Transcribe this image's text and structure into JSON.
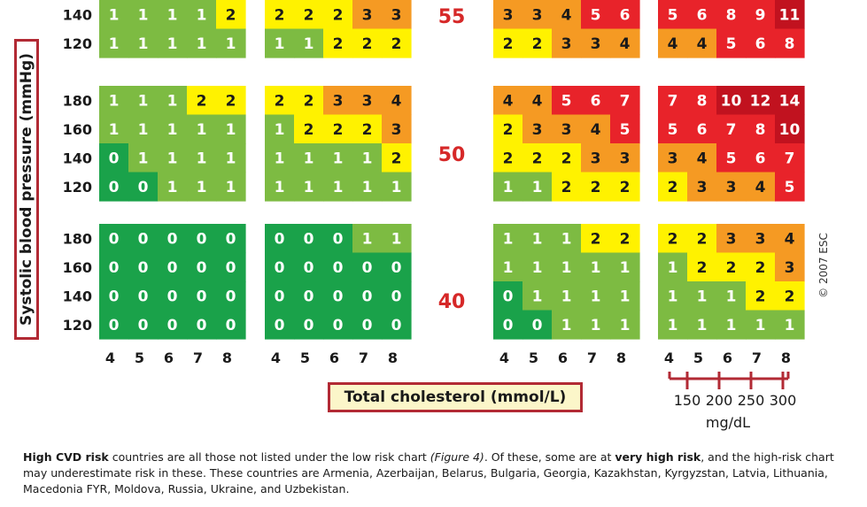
{
  "chart_data": {
    "type": "heatmap",
    "title": "",
    "xlabel": "Total cholesterol (mmol/L)",
    "ylabel": "Systolic blood pressure (mmHg)",
    "x_ticks": [
      "4",
      "5",
      "6",
      "7",
      "8"
    ],
    "secondary_x_axis": {
      "ticks": [
        "150",
        "200",
        "250",
        "300"
      ],
      "unit": "mg/dL"
    },
    "age_rows": [
      {
        "age": "55",
        "sbp": [
          "140",
          "120"
        ],
        "panels": [
          [
            [
              1,
              1,
              1,
              1,
              2
            ],
            [
              1,
              1,
              1,
              1,
              1
            ]
          ],
          [
            [
              2,
              2,
              2,
              3,
              3
            ],
            [
              1,
              1,
              2,
              2,
              2
            ]
          ],
          [
            [
              3,
              3,
              4,
              5,
              6
            ],
            [
              2,
              2,
              3,
              3,
              4
            ]
          ],
          [
            [
              5,
              6,
              8,
              9,
              11
            ],
            [
              4,
              4,
              5,
              6,
              8
            ]
          ]
        ]
      },
      {
        "age": "50",
        "sbp": [
          "180",
          "160",
          "140",
          "120"
        ],
        "panels": [
          [
            [
              1,
              1,
              1,
              2,
              2
            ],
            [
              1,
              1,
              1,
              1,
              1
            ],
            [
              0,
              1,
              1,
              1,
              1
            ],
            [
              0,
              0,
              1,
              1,
              1
            ]
          ],
          [
            [
              2,
              2,
              3,
              3,
              4
            ],
            [
              1,
              2,
              2,
              2,
              3
            ],
            [
              1,
              1,
              1,
              1,
              2
            ],
            [
              1,
              1,
              1,
              1,
              1
            ]
          ],
          [
            [
              4,
              4,
              5,
              6,
              7
            ],
            [
              2,
              3,
              3,
              4,
              5
            ],
            [
              2,
              2,
              2,
              3,
              3
            ],
            [
              1,
              1,
              2,
              2,
              2
            ]
          ],
          [
            [
              7,
              8,
              10,
              12,
              14
            ],
            [
              5,
              6,
              7,
              8,
              10
            ],
            [
              3,
              4,
              5,
              6,
              7
            ],
            [
              2,
              3,
              3,
              4,
              5
            ]
          ]
        ]
      },
      {
        "age": "40",
        "sbp": [
          "180",
          "160",
          "140",
          "120"
        ],
        "panels": [
          [
            [
              0,
              0,
              0,
              0,
              0
            ],
            [
              0,
              0,
              0,
              0,
              0
            ],
            [
              0,
              0,
              0,
              0,
              0
            ],
            [
              0,
              0,
              0,
              0,
              0
            ]
          ],
          [
            [
              0,
              0,
              0,
              1,
              1
            ],
            [
              0,
              0,
              0,
              0,
              0
            ],
            [
              0,
              0,
              0,
              0,
              0
            ],
            [
              0,
              0,
              0,
              0,
              0
            ]
          ],
          [
            [
              1,
              1,
              1,
              2,
              2
            ],
            [
              1,
              1,
              1,
              1,
              1
            ],
            [
              0,
              1,
              1,
              1,
              1
            ],
            [
              0,
              0,
              1,
              1,
              1
            ]
          ],
          [
            [
              2,
              2,
              3,
              3,
              4
            ],
            [
              1,
              2,
              2,
              2,
              3
            ],
            [
              1,
              1,
              1,
              2,
              2
            ],
            [
              1,
              1,
              1,
              1,
              1
            ]
          ]
        ]
      }
    ],
    "colors": {
      "dark_green": "#1aa24a",
      "light_green": "#7dbb42",
      "yellow": "#fff200",
      "orange": "#f59a23",
      "red": "#e8232a",
      "dark_red": "#c1121f"
    }
  },
  "labels": {
    "ylabel": "Systolic blood pressure (mmHg)",
    "xlabel": "Total cholesterol (mmol/L)",
    "mgdl": "mg/dL",
    "copyright": "© 2007 ESC"
  },
  "footnote": {
    "p1_bold": "High CVD risk",
    "p2": " countries are all those not listed under the low risk chart ",
    "p3_italic": "(Figure 4)",
    "p4": ". Of these, some are at ",
    "p5_bold": "very high risk",
    "p6": ", and the high-risk chart may underestimate risk in these. These countries are Armenia, Azerbaijan, Belarus, Bulgaria, Georgia, Kazakhstan, Kyrgyzstan, Latvia, Lithuania, Macedonia FYR, Moldova, Russia, Ukraine, and Uzbekistan."
  }
}
